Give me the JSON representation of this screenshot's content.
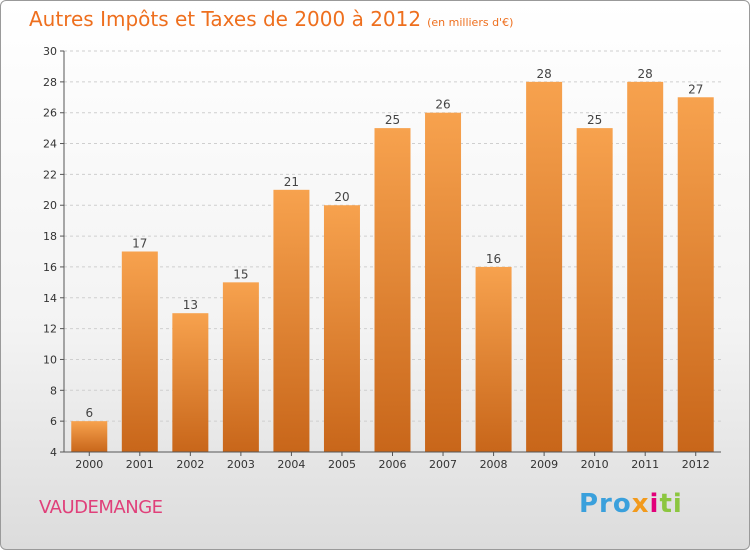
{
  "title": "Autres Impôts et Taxes de 2000 à 2012",
  "subtitle": "(en milliers d'€)",
  "commune": "VAUDEMANGE",
  "brand": {
    "part1": "Pro",
    "part2": "x",
    "part3": "i",
    "part4": "ti"
  },
  "colors": {
    "bar_light": "#f7a24e",
    "bar_dark": "#c8661a",
    "title": "#ee6f1e",
    "commune": "#e0407a"
  },
  "chart_data": {
    "type": "bar",
    "categories": [
      "2000",
      "2001",
      "2002",
      "2003",
      "2004",
      "2005",
      "2006",
      "2007",
      "2008",
      "2009",
      "2010",
      "2011",
      "2012"
    ],
    "values": [
      6,
      17,
      13,
      15,
      21,
      20,
      25,
      26,
      16,
      28,
      25,
      28,
      27
    ],
    "ylim": [
      4,
      30
    ],
    "yticks": [
      4,
      6,
      8,
      10,
      12,
      14,
      16,
      18,
      20,
      22,
      24,
      26,
      28,
      30
    ],
    "grid": true,
    "data_labels": true
  }
}
